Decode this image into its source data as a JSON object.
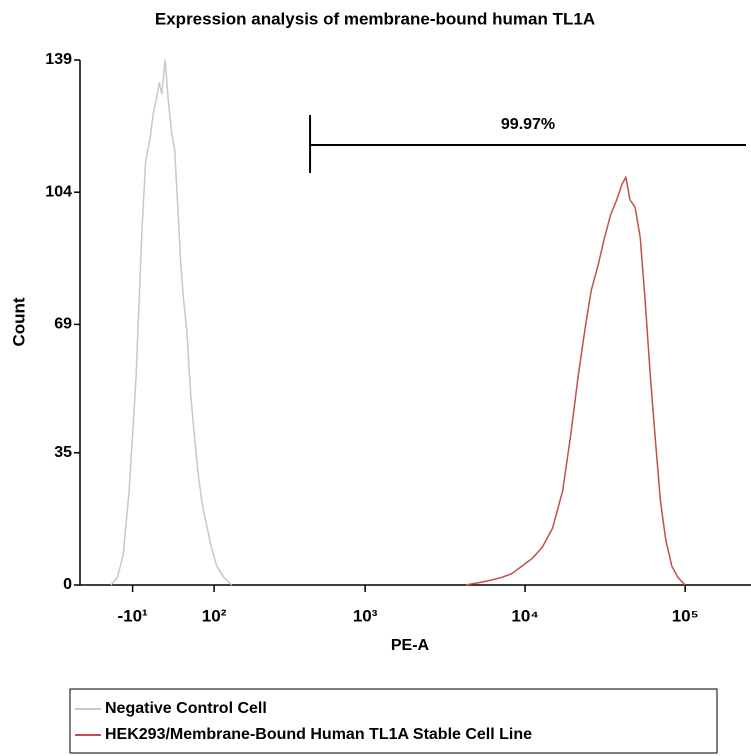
{
  "chart_data": {
    "type": "histogram-line",
    "title": "Expression analysis of membrane-bound human TL1A",
    "x_label": "PE-A",
    "y_label": "Count",
    "xscale": "biexponential",
    "xlim": [
      -80,
      240000
    ],
    "xticks": [
      {
        "value": -10,
        "label": "-10¹"
      },
      {
        "value": 100,
        "label": "10²"
      },
      {
        "value": 1000,
        "label": "10³"
      },
      {
        "value": 10000,
        "label": "10⁴"
      },
      {
        "value": 100000,
        "label": "10⁵"
      }
    ],
    "ylim": [
      0,
      139
    ],
    "yticks": [
      0,
      35,
      69,
      104,
      139
    ],
    "gate": {
      "value": 99.97,
      "label": "99.97%",
      "x": [
        450,
        240000
      ]
    },
    "series": [
      {
        "name": "Negative Control Cell",
        "color": "#c8c8c8",
        "x": [
          -36,
          -28,
          -21,
          -14,
          -6,
          1,
          5,
          10,
          14,
          17,
          21,
          24,
          28,
          32,
          36,
          40,
          44,
          48,
          52,
          56,
          62,
          68,
          74,
          81,
          88,
          95,
          105,
          119,
          136
        ],
        "values": [
          0,
          2,
          8,
          25,
          55,
          95,
          112,
          118,
          125,
          128,
          133,
          130,
          139,
          128,
          120,
          115,
          100,
          85,
          75,
          68,
          50,
          38,
          28,
          20,
          15,
          10,
          5,
          2,
          0
        ]
      },
      {
        "name": "HEK293/Membrane-Bound Human TL1A Stable Cell Line",
        "color": "#c0504d",
        "x": [
          4268,
          5720,
          7128,
          8256,
          9556,
          11068,
          12808,
          14836,
          17184,
          19320,
          21416,
          23716,
          25896,
          28716,
          31360,
          34240,
          37380,
          40200,
          42640,
          45200,
          48680,
          52400,
          56320,
          60680,
          65280,
          70200,
          75640,
          82560,
          90160,
          99840
        ],
        "values": [
          0,
          1,
          2,
          3,
          5,
          7,
          10,
          15,
          25,
          40,
          55,
          68,
          78,
          85,
          92,
          98,
          102,
          106,
          108,
          102,
          100,
          92,
          75,
          55,
          38,
          22,
          12,
          5,
          2,
          0
        ]
      }
    ]
  }
}
